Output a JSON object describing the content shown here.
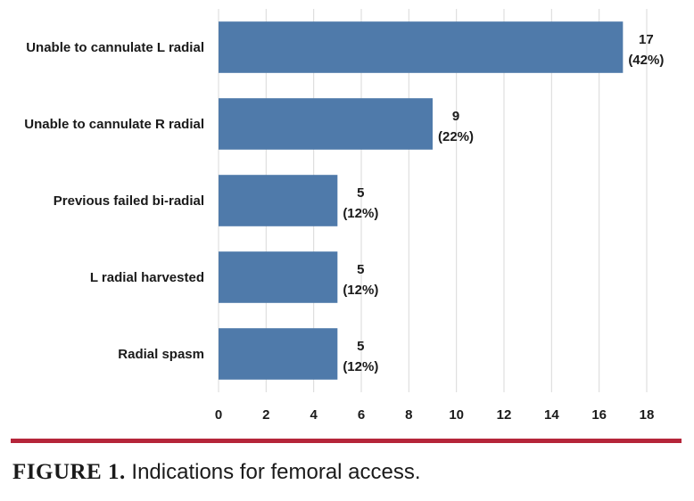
{
  "chart_data": {
    "type": "bar",
    "orientation": "horizontal",
    "categories": [
      "Unable to cannulate L radial",
      "Unable to cannulate R radial",
      "Previous failed bi-radial",
      "L radial harvested",
      "Radial spasm"
    ],
    "values": [
      17,
      9,
      5,
      5,
      5
    ],
    "value_labels": [
      "17",
      "9",
      "5",
      "5",
      "5"
    ],
    "percent_labels": [
      "(42%)",
      "(22%)",
      "(12%)",
      "(12%)",
      "(12%)"
    ],
    "xlim": [
      0,
      18
    ],
    "xticks": [
      0,
      2,
      4,
      6,
      8,
      10,
      12,
      14,
      16,
      18
    ],
    "grid": true,
    "legend": "none",
    "bar_color": "#4f7aaa",
    "grid_color": "#d9d9d9"
  },
  "caption": {
    "prefix": "FIGURE 1.",
    "text": " Indications for femoral access."
  },
  "colors": {
    "divider": "#b5253a"
  }
}
